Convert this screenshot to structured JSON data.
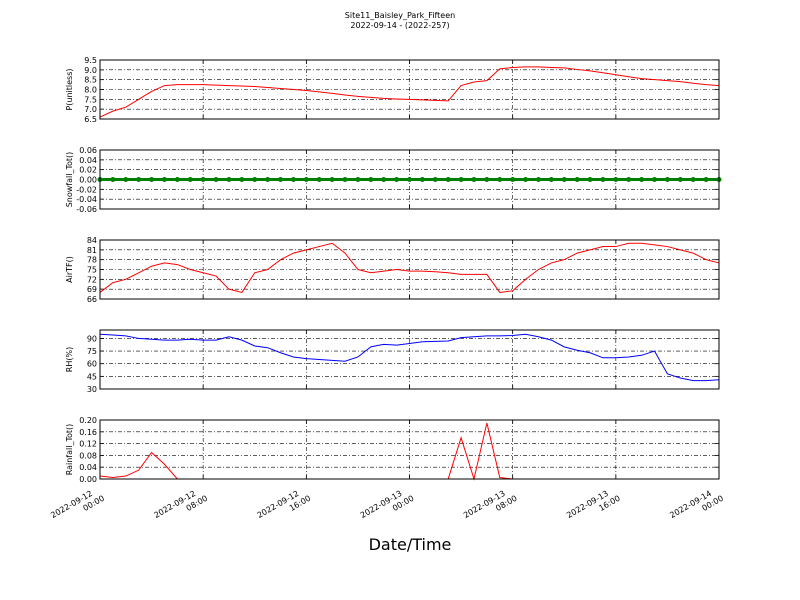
{
  "chart_data": {
    "type": "line",
    "title": "Site11_Baisley_Park_Fifteen",
    "subtitle": "2022-09-14 - (2022-257)",
    "xlabel": "Date/Time",
    "x": [
      "2022-09-12 00:00",
      "2022-09-12 01:00",
      "2022-09-12 02:00",
      "2022-09-12 03:00",
      "2022-09-12 04:00",
      "2022-09-12 05:00",
      "2022-09-12 06:00",
      "2022-09-12 07:00",
      "2022-09-12 08:00",
      "2022-09-12 09:00",
      "2022-09-12 10:00",
      "2022-09-12 11:00",
      "2022-09-12 12:00",
      "2022-09-12 13:00",
      "2022-09-12 14:00",
      "2022-09-12 15:00",
      "2022-09-12 16:00",
      "2022-09-12 17:00",
      "2022-09-12 18:00",
      "2022-09-12 19:00",
      "2022-09-12 20:00",
      "2022-09-12 21:00",
      "2022-09-12 22:00",
      "2022-09-12 23:00",
      "2022-09-13 00:00",
      "2022-09-13 01:00",
      "2022-09-13 02:00",
      "2022-09-13 03:00",
      "2022-09-13 04:00",
      "2022-09-13 05:00",
      "2022-09-13 06:00",
      "2022-09-13 07:00",
      "2022-09-13 08:00",
      "2022-09-13 09:00",
      "2022-09-13 10:00",
      "2022-09-13 11:00",
      "2022-09-13 12:00",
      "2022-09-13 13:00",
      "2022-09-13 14:00",
      "2022-09-13 15:00",
      "2022-09-13 16:00",
      "2022-09-13 17:00",
      "2022-09-13 18:00",
      "2022-09-13 19:00",
      "2022-09-13 20:00",
      "2022-09-13 21:00",
      "2022-09-13 22:00",
      "2022-09-13 23:00",
      "2022-09-14 00:00"
    ],
    "xlim": [
      "2022-09-12 00:00",
      "2022-09-14 00:00"
    ],
    "xticks": [
      "2022-09-12 00:00",
      "2022-09-12 08:00",
      "2022-09-12 16:00",
      "2022-09-13 00:00",
      "2022-09-13 08:00",
      "2022-09-13 16:00",
      "2022-09-14 00:00"
    ],
    "grid": true,
    "panels": [
      {
        "ylabel": "P(unitless)",
        "color": "#ff0000",
        "values": [
          6.6,
          6.9,
          7.1,
          7.5,
          7.9,
          8.2,
          8.25,
          8.25,
          8.25,
          8.22,
          8.2,
          8.18,
          8.15,
          8.1,
          8.05,
          8.0,
          7.95,
          7.88,
          7.8,
          7.72,
          7.65,
          7.6,
          7.55,
          7.52,
          7.5,
          7.47,
          7.45,
          7.42,
          8.2,
          8.38,
          8.45,
          9.05,
          9.12,
          9.15,
          9.15,
          9.12,
          9.1,
          9.02,
          8.95,
          8.85,
          8.75,
          8.65,
          8.55,
          8.5,
          8.45,
          8.4,
          8.32,
          8.25,
          8.2
        ],
        "ylim": [
          6.5,
          9.5
        ],
        "yticks": [
          6.5,
          {
            "value": 7,
            "label": "7.0"
          },
          7.5,
          {
            "value": 8,
            "label": "8.0"
          },
          8.5,
          {
            "value": 9,
            "label": "9.0"
          },
          9.5
        ]
      },
      {
        "ylabel": "Snowfall_Tot()",
        "color": "#008000",
        "marker": "o",
        "values": [
          0,
          0,
          0,
          0,
          0,
          0,
          0,
          0,
          0,
          0,
          0,
          0,
          0,
          0,
          0,
          0,
          0,
          0,
          0,
          0,
          0,
          0,
          0,
          0,
          0,
          0,
          0,
          0,
          0,
          0,
          0,
          0,
          0,
          0,
          0,
          0,
          0,
          0,
          0,
          0,
          0,
          0,
          0,
          0,
          0,
          0,
          0,
          0,
          0
        ],
        "ylim": [
          -0.06,
          0.06
        ],
        "yticks": [
          -0.06,
          -0.04,
          -0.02,
          {
            "value": 0,
            "label": "0.00"
          },
          0.02,
          0.04,
          0.06
        ]
      },
      {
        "ylabel": "AirTF()",
        "color": "#ff0000",
        "values": [
          68,
          71,
          72,
          74,
          76,
          77,
          76.5,
          75,
          74,
          73,
          69,
          68,
          74,
          75,
          78,
          80,
          81,
          82,
          83,
          80,
          75,
          74,
          74.5,
          75,
          74.5,
          74.5,
          74.3,
          74,
          73.5,
          73.5,
          73.5,
          68,
          68.5,
          72,
          75,
          77,
          78,
          80,
          81,
          82,
          82,
          83,
          83,
          82.5,
          82,
          81,
          80,
          78,
          77
        ],
        "ylim": [
          66,
          84
        ],
        "yticks": [
          66,
          69,
          72,
          75,
          78,
          81,
          84
        ]
      },
      {
        "ylabel": "RH(%)",
        "color": "#0000ff",
        "values": [
          95,
          94,
          93,
          90,
          89,
          88,
          88,
          89,
          88,
          88,
          92,
          88,
          81,
          79,
          73,
          68,
          66,
          65,
          64,
          63,
          68,
          80,
          83,
          82,
          84,
          86,
          86.5,
          87,
          91,
          92,
          93,
          93,
          93.5,
          95,
          92,
          88,
          80,
          76,
          73,
          67,
          67,
          68,
          70,
          75,
          48,
          43,
          40,
          40,
          41
        ],
        "ylim": [
          30,
          100
        ],
        "yticks": [
          30,
          45,
          60,
          75,
          90
        ]
      },
      {
        "ylabel": "Rainfall_Tot()",
        "color": "#ff0000",
        "values": [
          0.01,
          0.005,
          0.01,
          0.03,
          0.09,
          0.05,
          0,
          0,
          0,
          0,
          0,
          0,
          0,
          0,
          0,
          0,
          0,
          0,
          0,
          0,
          0,
          0,
          0,
          0,
          0,
          0,
          0,
          0,
          0.14,
          0,
          0.19,
          0.005,
          0,
          0,
          0,
          0,
          0,
          0,
          0,
          0,
          0,
          0,
          0,
          0,
          0,
          0,
          0,
          0,
          0
        ],
        "ylim": [
          0,
          0.2
        ],
        "yticks": [
          {
            "value": 0,
            "label": "0.00"
          },
          0.04,
          0.08,
          0.12,
          0.16,
          {
            "value": 0.2,
            "label": "0.20"
          }
        ]
      }
    ]
  }
}
